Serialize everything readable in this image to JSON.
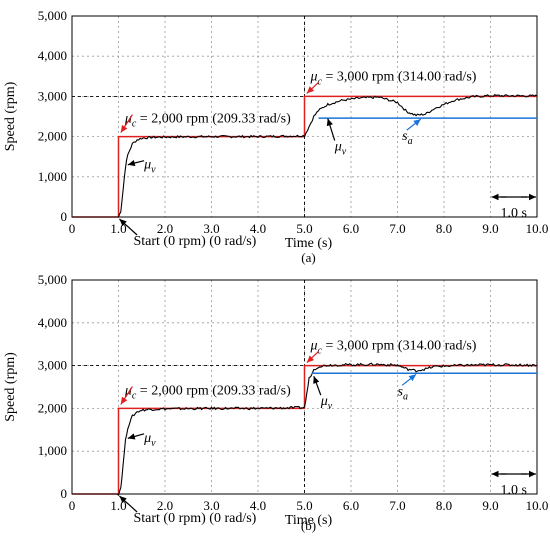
{
  "chart_data": [
    {
      "type": "line",
      "caption": "(a)",
      "xlabel": "Time (s)",
      "ylabel": "Speed (rpm)",
      "xlim": [
        0,
        10
      ],
      "ylim": [
        0,
        5000
      ],
      "xticks": [
        0,
        1,
        2,
        3,
        4,
        5,
        6,
        7,
        8,
        9,
        10
      ],
      "xtick_labels": [
        "0",
        "1.0",
        "2.0",
        "3.0",
        "4.0",
        "5.0",
        "6.0",
        "7.0",
        "8.0",
        "9.0",
        "10.0"
      ],
      "yticks": [
        0,
        1000,
        2000,
        3000,
        4000,
        5000
      ],
      "ytick_labels": [
        "0",
        "1,000",
        "2,000",
        "3,000",
        "4,000",
        "5,000"
      ],
      "grid": true,
      "scale_bar": "1.0 s",
      "series": [
        {
          "role": "reference",
          "color": "#e02020",
          "x": [
            0,
            1.0,
            1.0,
            5.0,
            5.0,
            10.0
          ],
          "y": [
            0,
            0,
            2000,
            2000,
            3000,
            3000
          ]
        },
        {
          "role": "measured",
          "color": "#000000",
          "x": [
            0,
            1.0,
            1.05,
            1.1,
            1.15,
            1.2,
            1.3,
            1.4,
            1.5,
            1.7,
            2.0,
            3.0,
            4.0,
            5.0,
            5.1,
            5.2,
            5.3,
            5.5,
            5.8,
            6.2,
            6.6,
            7.0,
            7.2,
            7.4,
            7.6,
            7.8,
            8.2,
            8.6,
            9.0,
            10.0
          ],
          "y": [
            0,
            0,
            150,
            700,
            1250,
            1550,
            1820,
            1920,
            1960,
            1980,
            1990,
            2000,
            2000,
            2020,
            2250,
            2500,
            2650,
            2800,
            2900,
            2960,
            2980,
            2850,
            2620,
            2530,
            2560,
            2700,
            2900,
            2990,
            3020,
            3010
          ]
        },
        {
          "role": "load",
          "color": "#1a73d9",
          "x": [
            5.3,
            10.0
          ],
          "y": [
            2460,
            2460
          ]
        }
      ],
      "annotations": [
        {
          "text": "μc = 2,000 rpm (209.33 rad/s)",
          "x": 1.0,
          "y": 2000
        },
        {
          "text": "μv",
          "x": 1.2,
          "y": 1500
        },
        {
          "text": "Start (0 rpm) (0 rad/s)",
          "x": 1.0,
          "y": 0
        },
        {
          "text": "μc = 3,000 rpm (314.00 rad/s)",
          "x": 5.0,
          "y": 3000
        },
        {
          "text": "μv",
          "x": 5.5,
          "y": 2800
        },
        {
          "text": "sa",
          "x": 7.5,
          "y": 2460
        }
      ]
    },
    {
      "type": "line",
      "caption": "(b)",
      "xlabel": "Time (s)",
      "ylabel": "Speed (rpm)",
      "xlim": [
        0,
        10
      ],
      "ylim": [
        0,
        5000
      ],
      "xticks": [
        0,
        1,
        2,
        3,
        4,
        5,
        6,
        7,
        8,
        9,
        10
      ],
      "xtick_labels": [
        "0",
        "1.0",
        "2.0",
        "3.0",
        "4.0",
        "5.0",
        "6.0",
        "7.0",
        "8.0",
        "9.0",
        "10.0"
      ],
      "yticks": [
        0,
        1000,
        2000,
        3000,
        4000,
        5000
      ],
      "ytick_labels": [
        "0",
        "1,000",
        "2,000",
        "3,000",
        "4,000",
        "5,000"
      ],
      "grid": true,
      "scale_bar": "1.0 s",
      "series": [
        {
          "role": "reference",
          "color": "#e02020",
          "x": [
            0,
            1.0,
            1.0,
            5.0,
            5.0,
            10.0
          ],
          "y": [
            0,
            0,
            2000,
            2000,
            3000,
            3000
          ]
        },
        {
          "role": "measured",
          "color": "#000000",
          "x": [
            0,
            1.0,
            1.05,
            1.1,
            1.15,
            1.2,
            1.3,
            1.4,
            1.5,
            1.7,
            2.0,
            3.0,
            4.0,
            5.0,
            5.05,
            5.1,
            5.2,
            5.3,
            5.5,
            6.0,
            6.5,
            7.0,
            7.2,
            7.4,
            7.6,
            7.8,
            8.5,
            9.0,
            10.0
          ],
          "y": [
            0,
            0,
            150,
            700,
            1250,
            1550,
            1820,
            1920,
            1960,
            1980,
            1990,
            2000,
            2000,
            2020,
            2350,
            2700,
            2900,
            2980,
            3010,
            3020,
            3030,
            3010,
            2920,
            2880,
            2920,
            2980,
            3010,
            3020,
            3010
          ]
        },
        {
          "role": "load",
          "color": "#1a73d9",
          "x": [
            5.15,
            10.0
          ],
          "y": [
            2820,
            2820
          ]
        }
      ],
      "annotations": [
        {
          "text": "μc = 2,000 rpm (209.33 rad/s)",
          "x": 1.0,
          "y": 2000
        },
        {
          "text": "μv",
          "x": 1.2,
          "y": 1500
        },
        {
          "text": "Start (0 rpm) (0 rad/s)",
          "x": 1.0,
          "y": 0
        },
        {
          "text": "μc = 3,000 rpm (314.00 rad/s)",
          "x": 5.0,
          "y": 3000
        },
        {
          "text": "μv",
          "x": 5.2,
          "y": 2800
        },
        {
          "text": "sa",
          "x": 7.4,
          "y": 2820
        }
      ]
    }
  ]
}
